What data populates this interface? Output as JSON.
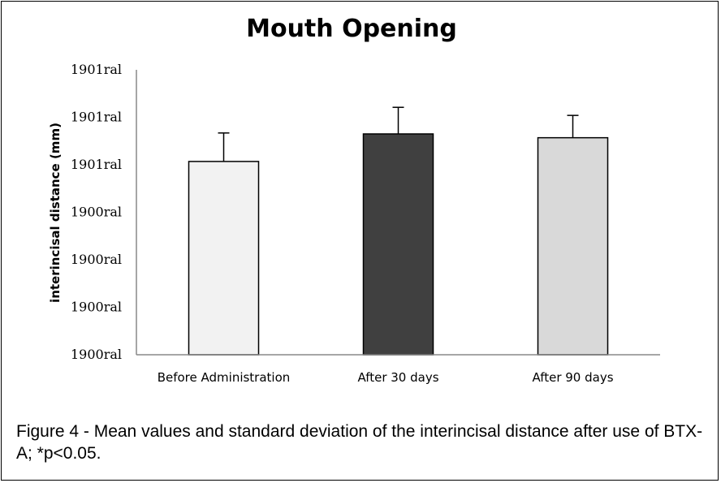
{
  "chart_data": {
    "type": "bar",
    "title": "Mouth Opening",
    "ylabel": "interincisal distance (mm)",
    "xlabel": "",
    "y_tick_labels": [
      "1900ral",
      "1900ral",
      "1900ral",
      "1900ral",
      "1901ral",
      "1901ral",
      "1901ral"
    ],
    "ylim": [
      0,
      6
    ],
    "grid": false,
    "legend": "none",
    "categories": [
      "Before Administration",
      "After 30 days",
      "After 90 days"
    ],
    "values": [
      4.07,
      4.65,
      4.57
    ],
    "errors": [
      0.6,
      0.56,
      0.47
    ],
    "colors": [
      "#f2f2f2",
      "#404040",
      "#d9d9d9"
    ]
  },
  "caption": "Figure 4 - Mean values and standard deviation of the interincisal distance after use of  BTX-A; *p<0.05."
}
